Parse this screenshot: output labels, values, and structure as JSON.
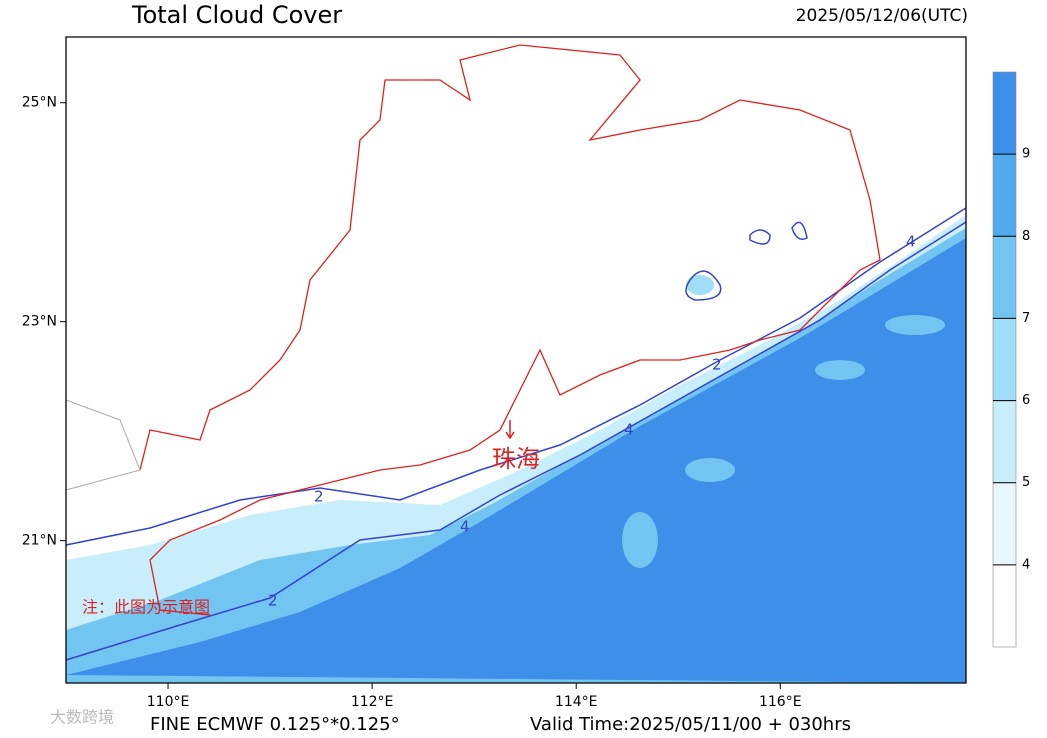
{
  "header": {
    "title": "Total Cloud Cover",
    "time": "2025/05/12/06(UTC)"
  },
  "map": {
    "lonlim": [
      109,
      117.82
    ],
    "latlim": [
      19.7,
      25.6
    ],
    "lon_ticks": [
      {
        "value": 110,
        "label": "110°E"
      },
      {
        "value": 112,
        "label": "112°E"
      },
      {
        "value": 114,
        "label": "114°E"
      },
      {
        "value": 116,
        "label": "116°E"
      }
    ],
    "lat_ticks": [
      {
        "value": 25,
        "label": "25°N"
      },
      {
        "value": 23,
        "label": "23°N"
      },
      {
        "value": 21,
        "label": "21°N"
      }
    ],
    "city": "珠海",
    "note": "注：此图为示意图",
    "contour_labels": [
      "2",
      "4"
    ]
  },
  "colorbar": {
    "levels": [
      4,
      5,
      6,
      7,
      8,
      9
    ],
    "colors": [
      "#ffffff",
      "#e8f6fd",
      "#c8edfb",
      "#a0ddf6",
      "#72c4f1",
      "#52aaee",
      "#3e8fe9"
    ]
  },
  "footer": {
    "model": "FINE ECMWF 0.125°*0.125°",
    "valid": "Valid Time:2025/05/11/00 + 030hrs",
    "watermark": "大数跨境"
  }
}
